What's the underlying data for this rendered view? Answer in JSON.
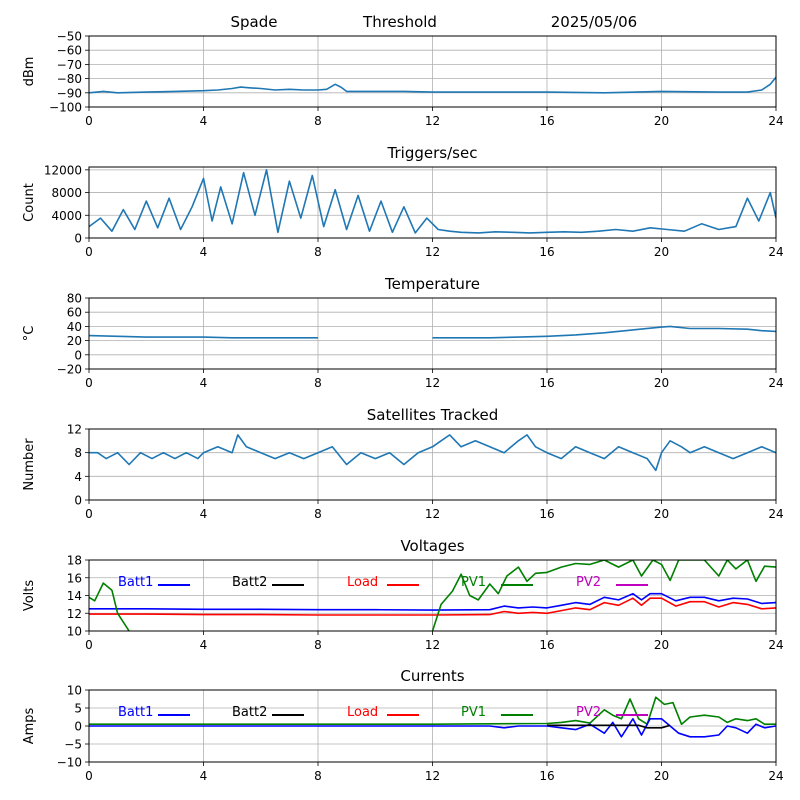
{
  "header": {
    "station": "Spade",
    "mode": "Threshold",
    "date": "2025/05/06"
  },
  "x_ticks": [
    "0",
    "4",
    "8",
    "12",
    "16",
    "20",
    "24"
  ],
  "colors": {
    "series": "#1f77b4",
    "grid": "#b0b0b0",
    "Batt1": "#0000ff",
    "Batt2": "#000000",
    "Load": "#ff0000",
    "PV1": "#008000",
    "PV2": "#bf00bf"
  },
  "chart_data": [
    {
      "type": "line",
      "title": "",
      "ylabel": "dBm",
      "xlim": [
        0,
        24
      ],
      "ylim": [
        -100,
        -50
      ],
      "yticks": [
        -50,
        -60,
        -70,
        -80,
        -90,
        -100
      ],
      "grid": true,
      "series": [
        {
          "x": [
            0,
            0.5,
            1,
            2,
            3,
            4,
            4.5,
            5,
            5.3,
            5.6,
            6,
            6.5,
            7,
            7.5,
            8,
            8.3,
            8.6,
            8.8,
            9,
            10,
            11,
            12,
            14,
            16,
            18,
            20,
            22,
            23,
            23.5,
            23.8,
            24
          ],
          "y": [
            -90,
            -89,
            -90,
            -89.5,
            -89,
            -88.5,
            -88,
            -87,
            -86,
            -86.5,
            -87,
            -88,
            -87.5,
            -88,
            -88,
            -87.5,
            -84,
            -86,
            -89,
            -89,
            -89,
            -89.5,
            -89.5,
            -89.5,
            -90,
            -89,
            -89.5,
            -89.5,
            -88,
            -84,
            -79
          ]
        }
      ]
    },
    {
      "type": "line",
      "title": "Triggers/sec",
      "ylabel": "Count",
      "xlim": [
        0,
        24
      ],
      "ylim": [
        0,
        12500
      ],
      "yticks": [
        0,
        4000,
        8000,
        12000
      ],
      "grid": true,
      "series": [
        {
          "x": [
            0,
            0.4,
            0.8,
            1.2,
            1.6,
            2,
            2.4,
            2.8,
            3.2,
            3.6,
            4,
            4.3,
            4.6,
            5,
            5.4,
            5.8,
            6.2,
            6.6,
            7,
            7.4,
            7.8,
            8.2,
            8.6,
            9,
            9.4,
            9.8,
            10.2,
            10.6,
            11,
            11.4,
            11.8,
            12.2,
            12.6,
            13,
            13.6,
            14.2,
            14.8,
            15.4,
            16,
            16.6,
            17.2,
            17.8,
            18.4,
            19,
            19.6,
            20.2,
            20.8,
            21.4,
            22,
            22.6,
            23,
            23.4,
            23.8,
            24
          ],
          "y": [
            2000,
            3500,
            1200,
            5000,
            1500,
            6500,
            1800,
            7000,
            1500,
            5500,
            10500,
            3000,
            9000,
            2500,
            11500,
            4000,
            12000,
            1000,
            10000,
            3500,
            11000,
            2000,
            8500,
            1500,
            7500,
            1200,
            6500,
            1000,
            5500,
            900,
            3500,
            1500,
            1200,
            1000,
            900,
            1100,
            1000,
            900,
            1000,
            1100,
            1000,
            1200,
            1500,
            1200,
            1800,
            1500,
            1200,
            2500,
            1500,
            2000,
            7000,
            3000,
            8000,
            3500
          ]
        }
      ]
    },
    {
      "type": "line",
      "title": "Temperature",
      "ylabel": "°C",
      "xlim": [
        0,
        24
      ],
      "ylim": [
        -20,
        80
      ],
      "yticks": [
        -20,
        0,
        20,
        40,
        60,
        80
      ],
      "grid": true,
      "series": [
        {
          "x": [
            0,
            1,
            2,
            4,
            5,
            8,
            12,
            14,
            15,
            16,
            17,
            18,
            19,
            20,
            20.3,
            21,
            22,
            23,
            23.5,
            24
          ],
          "y": [
            27,
            26,
            25,
            25,
            24,
            24,
            24,
            24,
            25,
            26,
            28,
            31,
            35,
            39,
            40,
            37,
            37,
            36,
            34,
            33
          ]
        }
      ]
    },
    {
      "type": "line",
      "title": "Satellites Tracked",
      "ylabel": "Number",
      "xlim": [
        0,
        24
      ],
      "ylim": [
        0,
        12
      ],
      "yticks": [
        0,
        4,
        8,
        12
      ],
      "grid": true,
      "series": [
        {
          "x": [
            0,
            0.3,
            0.6,
            1,
            1.4,
            1.8,
            2.2,
            2.6,
            3,
            3.4,
            3.8,
            4,
            4.5,
            5,
            5.2,
            5.5,
            6,
            6.5,
            7,
            7.5,
            8,
            8.5,
            9,
            9.5,
            10,
            10.5,
            11,
            11.5,
            12,
            12.3,
            12.6,
            13,
            13.5,
            14,
            14.5,
            15,
            15.3,
            15.6,
            16,
            16.5,
            17,
            17.5,
            18,
            18.5,
            19,
            19.5,
            19.8,
            20,
            20.3,
            20.7,
            21,
            21.5,
            22,
            22.5,
            23,
            23.5,
            24
          ],
          "y": [
            8,
            8,
            7,
            8,
            6,
            8,
            7,
            8,
            7,
            8,
            7,
            8,
            9,
            8,
            11,
            9,
            8,
            7,
            8,
            7,
            8,
            9,
            6,
            8,
            7,
            8,
            6,
            8,
            9,
            10,
            11,
            9,
            10,
            9,
            8,
            10,
            11,
            9,
            8,
            7,
            9,
            8,
            7,
            9,
            8,
            7,
            5,
            8,
            10,
            9,
            8,
            9,
            8,
            7,
            8,
            9,
            8
          ]
        }
      ]
    },
    {
      "type": "line",
      "title": "Voltages",
      "ylabel": "Volts",
      "xlim": [
        0,
        24
      ],
      "ylim": [
        10,
        18
      ],
      "yticks": [
        10,
        12,
        14,
        16,
        18
      ],
      "grid": true,
      "legend": "top, single row inside plot",
      "series": [
        {
          "name": "Batt1",
          "color": "#0000ff",
          "x": [
            0,
            2,
            4,
            6,
            8,
            10,
            12,
            14,
            14.5,
            15,
            15.5,
            16,
            16.5,
            17,
            17.5,
            18,
            18.5,
            19,
            19.3,
            19.6,
            20,
            20.5,
            21,
            21.5,
            22,
            22.5,
            23,
            23.5,
            24
          ],
          "y": [
            12.5,
            12.5,
            12.45,
            12.45,
            12.4,
            12.4,
            12.35,
            12.4,
            12.8,
            12.6,
            12.7,
            12.6,
            12.9,
            13.2,
            13.0,
            13.8,
            13.5,
            14.2,
            13.5,
            14.2,
            14.2,
            13.4,
            13.8,
            13.8,
            13.4,
            13.7,
            13.6,
            13.1,
            13.2
          ]
        },
        {
          "name": "Load",
          "color": "#ff0000",
          "x": [
            0,
            2,
            4,
            6,
            8,
            10,
            12,
            14,
            14.5,
            15,
            15.5,
            16,
            16.5,
            17,
            17.5,
            18,
            18.5,
            19,
            19.3,
            19.6,
            20,
            20.5,
            21,
            21.5,
            22,
            22.5,
            23,
            23.5,
            24
          ],
          "y": [
            11.9,
            11.9,
            11.85,
            11.85,
            11.8,
            11.8,
            11.8,
            11.85,
            12.2,
            12.0,
            12.1,
            12.0,
            12.3,
            12.6,
            12.4,
            13.2,
            12.9,
            13.7,
            12.9,
            13.7,
            13.7,
            12.8,
            13.3,
            13.3,
            12.7,
            13.2,
            13.0,
            12.5,
            12.6
          ]
        },
        {
          "name": "PV1",
          "color": "#008000",
          "x": [
            0,
            0.2,
            0.5,
            0.8,
            1.0,
            1.2,
            1.4,
            12,
            12.3,
            12.7,
            13,
            13.3,
            13.6,
            14,
            14.3,
            14.6,
            15,
            15.3,
            15.6,
            16,
            16.5,
            17,
            17.5,
            18,
            18.5,
            19,
            19.3,
            19.7,
            20,
            20.3,
            20.6,
            21,
            21.5,
            22,
            22.3,
            22.6,
            23,
            23.3,
            23.6,
            24
          ],
          "y": [
            13.8,
            13.4,
            15.4,
            14.6,
            12.0,
            11.0,
            10.0,
            10.0,
            13.0,
            14.5,
            16.4,
            14.0,
            13.5,
            15.3,
            14.2,
            16.2,
            17.2,
            15.6,
            16.5,
            16.6,
            17.2,
            17.6,
            17.5,
            18,
            17.2,
            18,
            16.2,
            18,
            17.5,
            15.7,
            18,
            18,
            18,
            16.2,
            18,
            17.0,
            18,
            15.6,
            17.3,
            17.2
          ]
        },
        {
          "name": "Batt2",
          "color": "#000000",
          "x": [],
          "y": []
        },
        {
          "name": "PV2",
          "color": "#bf00bf",
          "x": [],
          "y": []
        }
      ]
    },
    {
      "type": "line",
      "title": "Currents",
      "ylabel": "Amps",
      "xlim": [
        0,
        24
      ],
      "ylim": [
        -10,
        10
      ],
      "yticks": [
        -10,
        -5,
        0,
        5,
        10
      ],
      "grid": true,
      "legend": "top, single row inside plot",
      "series": [
        {
          "name": "PV1",
          "color": "#008000",
          "x": [
            0,
            2,
            4,
            6,
            8,
            10,
            12,
            14,
            16,
            16.5,
            17,
            17.5,
            18,
            18.3,
            18.6,
            18.9,
            19.2,
            19.5,
            19.8,
            20.1,
            20.4,
            20.7,
            21,
            21.5,
            22,
            22.3,
            22.6,
            23,
            23.3,
            23.6,
            24
          ],
          "y": [
            0.5,
            0.5,
            0.5,
            0.5,
            0.5,
            0.5,
            0.5,
            0.6,
            0.7,
            1.0,
            1.5,
            0.8,
            4.5,
            3.0,
            2.0,
            7.5,
            2.0,
            0.5,
            8.0,
            6.0,
            6.5,
            0.5,
            2.5,
            3.0,
            2.5,
            1.0,
            2.0,
            1.5,
            2.0,
            0.5,
            0.5
          ]
        },
        {
          "name": "Batt1",
          "color": "#0000ff",
          "x": [
            0,
            2,
            4,
            6,
            8,
            10,
            12,
            14,
            14.5,
            15,
            16,
            16.5,
            17,
            17.5,
            18,
            18.3,
            18.6,
            19,
            19.3,
            19.6,
            20,
            20.3,
            20.6,
            21,
            21.5,
            22,
            22.3,
            22.6,
            23,
            23.3,
            23.6,
            24
          ],
          "y": [
            0,
            0,
            0,
            0,
            0,
            0,
            0,
            0,
            -0.5,
            0,
            0,
            -0.5,
            -1.0,
            0.5,
            -2.0,
            1.0,
            -3.0,
            2.0,
            -2.5,
            2.0,
            2.0,
            0,
            -2.0,
            -3.0,
            -3.0,
            -2.5,
            0,
            -0.5,
            -2.0,
            0.5,
            -0.5,
            0
          ]
        },
        {
          "name": "Load",
          "color": "#ff0000",
          "x": [
            0,
            4,
            8,
            12,
            16,
            20,
            24
          ],
          "y": [
            0.9,
            0.9,
            0.9,
            0.8,
            0.8,
            0.8,
            0.8
          ]
        },
        {
          "name": "Batt2",
          "color": "#000000",
          "x": [
            0,
            16,
            18.5,
            19.2,
            19.5,
            20.0,
            20.3,
            24
          ],
          "y": [
            0.2,
            0.2,
            0.2,
            0.2,
            -0.5,
            -0.5,
            0.2,
            0.2
          ]
        },
        {
          "name": "PV2",
          "color": "#bf00bf",
          "x": [
            0,
            4,
            8,
            12,
            16,
            20,
            24
          ],
          "y": [
            0.1,
            0.1,
            0.1,
            0.1,
            0.1,
            0.1,
            0.1
          ]
        }
      ]
    }
  ]
}
